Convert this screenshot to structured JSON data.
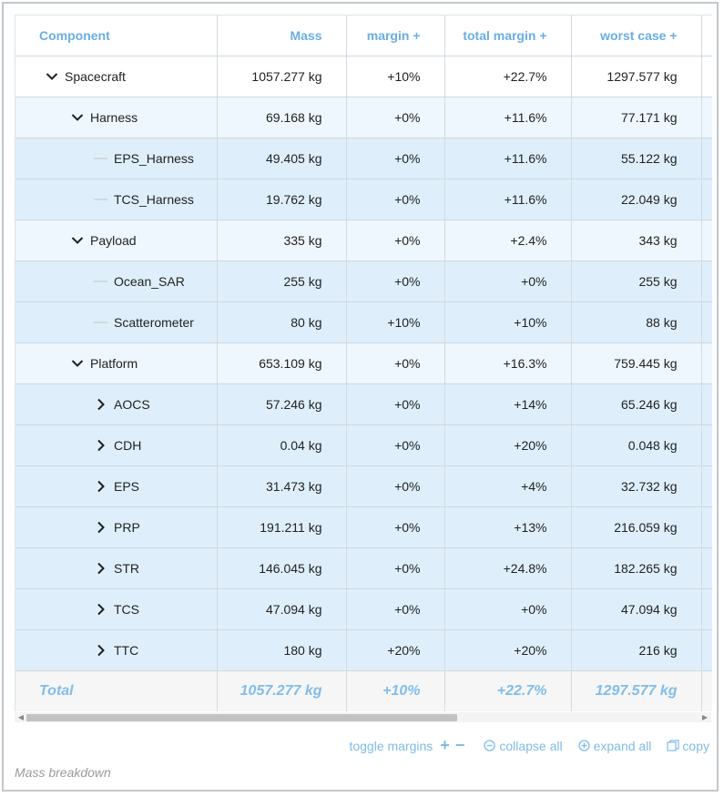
{
  "table": {
    "headers": [
      "Component",
      "Mass",
      "margin +",
      "total margin +",
      "worst case +"
    ],
    "rows": [
      {
        "level": 0,
        "toggle": "expanded",
        "name": "Spacecraft",
        "mass": "1057.277 kg",
        "margin": "+10%",
        "total_margin": "+22.7%",
        "worst_case": "1297.577 kg"
      },
      {
        "level": 1,
        "toggle": "expanded",
        "name": "Harness",
        "mass": "69.168 kg",
        "margin": "+0%",
        "total_margin": "+11.6%",
        "worst_case": "77.171 kg"
      },
      {
        "level": 2,
        "toggle": "leaf",
        "name": "EPS_Harness",
        "mass": "49.405 kg",
        "margin": "+0%",
        "total_margin": "+11.6%",
        "worst_case": "55.122 kg"
      },
      {
        "level": 2,
        "toggle": "leaf",
        "name": "TCS_Harness",
        "mass": "19.762 kg",
        "margin": "+0%",
        "total_margin": "+11.6%",
        "worst_case": "22.049 kg"
      },
      {
        "level": 1,
        "toggle": "expanded",
        "name": "Payload",
        "mass": "335 kg",
        "margin": "+0%",
        "total_margin": "+2.4%",
        "worst_case": "343 kg"
      },
      {
        "level": 2,
        "toggle": "leaf",
        "name": "Ocean_SAR",
        "mass": "255 kg",
        "margin": "+0%",
        "total_margin": "+0%",
        "worst_case": "255 kg"
      },
      {
        "level": 2,
        "toggle": "leaf",
        "name": "Scatterometer",
        "mass": "80 kg",
        "margin": "+10%",
        "total_margin": "+10%",
        "worst_case": "88 kg"
      },
      {
        "level": 1,
        "toggle": "expanded",
        "name": "Platform",
        "mass": "653.109 kg",
        "margin": "+0%",
        "total_margin": "+16.3%",
        "worst_case": "759.445 kg"
      },
      {
        "level": 2,
        "toggle": "collapsed",
        "name": "AOCS",
        "mass": "57.246 kg",
        "margin": "+0%",
        "total_margin": "+14%",
        "worst_case": "65.246 kg"
      },
      {
        "level": 2,
        "toggle": "collapsed",
        "name": "CDH",
        "mass": "0.04 kg",
        "margin": "+0%",
        "total_margin": "+20%",
        "worst_case": "0.048 kg"
      },
      {
        "level": 2,
        "toggle": "collapsed",
        "name": "EPS",
        "mass": "31.473 kg",
        "margin": "+0%",
        "total_margin": "+4%",
        "worst_case": "32.732 kg"
      },
      {
        "level": 2,
        "toggle": "collapsed",
        "name": "PRP",
        "mass": "191.211 kg",
        "margin": "+0%",
        "total_margin": "+13%",
        "worst_case": "216.059 kg"
      },
      {
        "level": 2,
        "toggle": "collapsed",
        "name": "STR",
        "mass": "146.045 kg",
        "margin": "+0%",
        "total_margin": "+24.8%",
        "worst_case": "182.265 kg"
      },
      {
        "level": 2,
        "toggle": "collapsed",
        "name": "TCS",
        "mass": "47.094 kg",
        "margin": "+0%",
        "total_margin": "+0%",
        "worst_case": "47.094 kg"
      },
      {
        "level": 2,
        "toggle": "collapsed",
        "name": "TTC",
        "mass": "180 kg",
        "margin": "+20%",
        "total_margin": "+20%",
        "worst_case": "216 kg"
      }
    ],
    "total": {
      "label": "Total",
      "mass": "1057.277 kg",
      "margin": "+10%",
      "total_margin": "+22.7%",
      "worst_case": "1297.577 kg"
    }
  },
  "scrollbar": {
    "horizontal_visible_fraction": 0.64
  },
  "actions": {
    "toggle_margins": "toggle margins",
    "plus": "+",
    "minus": "−",
    "collapse_all": "collapse all",
    "expand_all": "expand all",
    "copy": "copy"
  },
  "caption": "Mass breakdown",
  "colors": {
    "accent": "#7fbbe9",
    "header_text": "#69aee6",
    "row_level1": "#eef7fd",
    "row_level2": "#deeffb",
    "frame_border": "#c3c7cb"
  },
  "icons": [
    "chevron-down-icon",
    "chevron-right-icon",
    "leaf-dash-icon",
    "collapse-all-icon",
    "expand-all-icon",
    "copy-icon"
  ]
}
